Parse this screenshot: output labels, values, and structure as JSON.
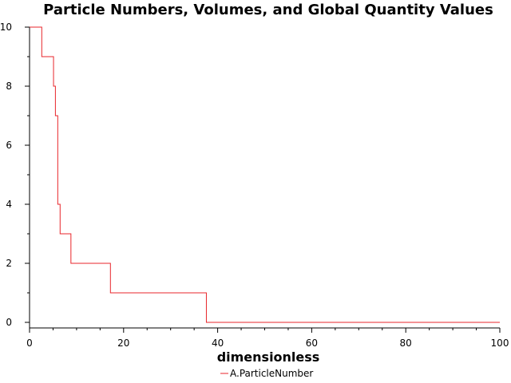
{
  "chart_data": {
    "type": "line",
    "title": "Particle Numbers, Volumes, and Global Quantity Values",
    "xlabel": "dimensionless",
    "ylabel": "",
    "xlim": [
      0,
      100
    ],
    "ylim": [
      0,
      10
    ],
    "x_ticks": [
      "0",
      "20",
      "40",
      "60",
      "80",
      "100"
    ],
    "y_ticks": [
      "0",
      "2",
      "4",
      "6",
      "8",
      "10"
    ],
    "grid": false,
    "legend_position": "bottom-center",
    "series": [
      {
        "name": "A.ParticleNumber",
        "color": "#e8262b",
        "step": true,
        "x": [
          0,
          2.6,
          5.1,
          5.5,
          6.0,
          6.5,
          8.8,
          17.2,
          37.6,
          100
        ],
        "y": [
          10,
          9,
          8,
          7,
          4,
          3,
          2,
          1,
          0,
          0
        ]
      }
    ]
  }
}
